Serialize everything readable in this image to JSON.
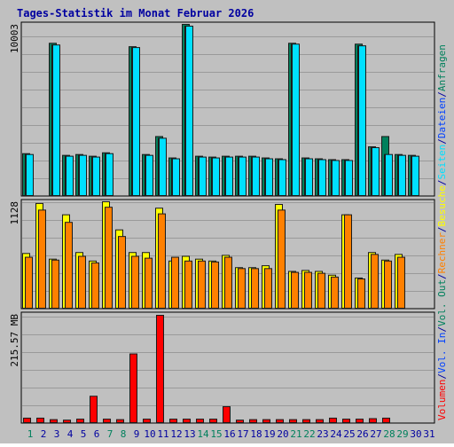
{
  "title": "Tages-Statistik im Monat Februar 2026",
  "colors": {
    "background": "#c0c0c0",
    "title": "#0000a0",
    "anfragen": "#00805c",
    "dateien": "#0040ff",
    "seiten": "#00e0ff",
    "besuche": "#ffff00",
    "rechner": "#ff8000",
    "volumen": "#ff0000",
    "day_green": "#00805c",
    "day_default": "#0000a0"
  },
  "chart_data": [
    {
      "type": "bar",
      "panel": "requests",
      "y_label_top": "10003",
      "ylim": [
        0,
        10003
      ],
      "x": [
        1,
        2,
        3,
        4,
        5,
        6,
        7,
        8,
        9,
        10,
        11,
        12,
        13,
        14,
        15,
        16,
        17,
        18,
        19,
        20,
        21,
        22,
        23,
        24,
        25,
        26,
        27,
        28,
        29,
        30,
        31
      ],
      "series": [
        {
          "name": "Anfragen",
          "color_key": "anfragen",
          "values": [
            2450,
            0,
            8900,
            2350,
            2400,
            2300,
            2500,
            0,
            8700,
            2400,
            3450,
            2200,
            10003,
            2300,
            2250,
            2300,
            2300,
            2300,
            2200,
            2150,
            8900,
            2200,
            2150,
            2100,
            2100,
            8850,
            2850,
            3450,
            2400,
            2350,
            null
          ]
        },
        {
          "name": "Dateien",
          "color_key": "dateien",
          "values": [
            2400,
            0,
            8800,
            2300,
            2350,
            2250,
            2450,
            0,
            8650,
            2350,
            3350,
            2150,
            9900,
            2250,
            2200,
            2250,
            2250,
            2250,
            2150,
            2100,
            8850,
            2150,
            2100,
            2050,
            2050,
            8750,
            2800,
            2400,
            2350,
            2300,
            null
          ]
        },
        {
          "name": "Seiten",
          "color_key": "seiten",
          "values": [
            2400,
            0,
            8800,
            2300,
            2350,
            2250,
            2450,
            0,
            8650,
            2350,
            3350,
            2150,
            9900,
            2250,
            2200,
            2250,
            2250,
            2250,
            2150,
            2100,
            8850,
            2150,
            2100,
            2050,
            2050,
            8750,
            2800,
            2400,
            2350,
            2300,
            null
          ]
        }
      ]
    },
    {
      "type": "bar",
      "panel": "visits",
      "y_label_top": "1128",
      "ylim": [
        0,
        1128
      ],
      "x": [
        1,
        2,
        3,
        4,
        5,
        6,
        7,
        8,
        9,
        10,
        11,
        12,
        13,
        14,
        15,
        16,
        17,
        18,
        19,
        20,
        21,
        22,
        23,
        24,
        25,
        26,
        27,
        28,
        29,
        30,
        31
      ],
      "series": [
        {
          "name": "Besuche",
          "color_key": "besuche",
          "values": [
            580,
            1110,
            520,
            990,
            590,
            500,
            1128,
            830,
            590,
            590,
            1060,
            500,
            550,
            520,
            500,
            560,
            430,
            430,
            450,
            1100,
            390,
            400,
            390,
            350,
            990,
            320,
            590,
            510,
            570,
            null,
            null
          ]
        },
        {
          "name": "Rechner",
          "color_key": "rechner",
          "values": [
            540,
            1040,
            510,
            910,
            550,
            480,
            1070,
            760,
            550,
            530,
            1000,
            540,
            500,
            500,
            490,
            540,
            420,
            420,
            420,
            1040,
            380,
            380,
            370,
            330,
            990,
            310,
            570,
            500,
            540,
            null,
            null
          ]
        }
      ]
    },
    {
      "type": "bar",
      "panel": "volume",
      "y_label_top": "215.57 MB",
      "ylim": [
        0,
        215.57
      ],
      "x": [
        1,
        2,
        3,
        4,
        5,
        6,
        7,
        8,
        9,
        10,
        11,
        12,
        13,
        14,
        15,
        16,
        17,
        18,
        19,
        20,
        21,
        22,
        23,
        24,
        25,
        26,
        27,
        28,
        29,
        30,
        31
      ],
      "series": [
        {
          "name": "Volumen",
          "color_key": "volumen",
          "values": [
            9,
            9,
            6,
            5,
            7,
            53,
            7,
            6,
            138,
            7,
            215.57,
            7,
            7,
            7,
            7,
            32,
            5,
            6,
            6,
            6,
            6,
            6,
            6,
            9,
            7,
            7,
            8,
            9,
            0,
            0,
            0
          ]
        }
      ]
    }
  ],
  "x_day_labels": [
    "1",
    "2",
    "3",
    "4",
    "5",
    "6",
    "7",
    "8",
    "9",
    "10",
    "11",
    "12",
    "13",
    "14",
    "15",
    "16",
    "17",
    "18",
    "19",
    "20",
    "21",
    "22",
    "23",
    "24",
    "25",
    "26",
    "27",
    "28",
    "29",
    "30",
    "31"
  ],
  "weekend_days": [
    1,
    7,
    8,
    14,
    15,
    21,
    22,
    28,
    29
  ],
  "right_legend": [
    {
      "text": "Volumen",
      "color_key": "volumen"
    },
    {
      "text": "/",
      "color_key": "title"
    },
    {
      "text": "Vol. In",
      "color_key": "dateien"
    },
    {
      "text": "/",
      "color_key": "title"
    },
    {
      "text": "Vol. Out",
      "color_key": "anfragen"
    },
    {
      "text": "/",
      "color_key": "title"
    },
    {
      "text": "Rechner",
      "color_key": "rechner"
    },
    {
      "text": "/",
      "color_key": "title"
    },
    {
      "text": "Besuche",
      "color_key": "besuche"
    },
    {
      "text": "/",
      "color_key": "title"
    },
    {
      "text": "Seiten",
      "color_key": "seiten"
    },
    {
      "text": "/",
      "color_key": "title"
    },
    {
      "text": "Dateien",
      "color_key": "dateien"
    },
    {
      "text": "/",
      "color_key": "title"
    },
    {
      "text": "Anfragen",
      "color_key": "anfragen"
    }
  ]
}
